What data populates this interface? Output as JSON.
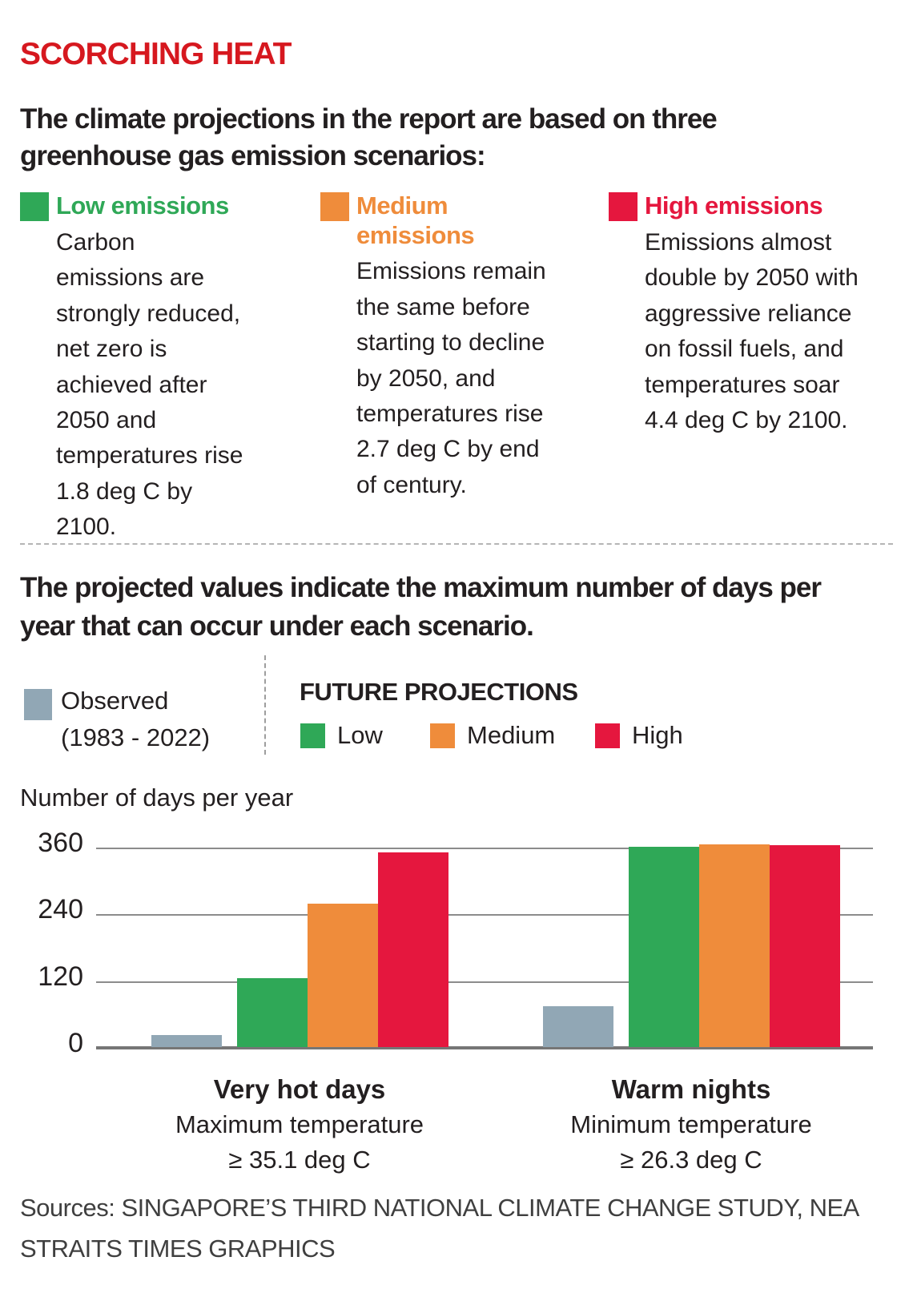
{
  "title": "SCORCHING HEAT",
  "title_color": "#d6181f",
  "intro": "The climate projections in the report are based on three greenhouse gas emission scenarios:",
  "scenarios": [
    {
      "label": "Low emissions",
      "color": "#2fa857",
      "desc": "Carbon emissions are strongly reduced, net zero is achieved after 2050 and temperatures rise 1.8 deg C by 2100."
    },
    {
      "label": "Medium emissions",
      "color": "#ef8c3b",
      "desc": "Emissions remain the same before starting to decline by 2050, and temperatures rise 2.7 deg C by end of century."
    },
    {
      "label": "High emissions",
      "color": "#e5173e",
      "desc": "Emissions almost double by 2050 with aggressive reliance on fossil fuels, and temperatures soar 4.4 deg C by 2100."
    }
  ],
  "note": "The projected values indicate the maximum number of days per year that can occur under each scenario.",
  "legend": {
    "observed_label": "Observed",
    "observed_period": "(1983 - 2022)",
    "observed_color": "#91a7b5",
    "future_title": "FUTURE PROJECTIONS",
    "items": [
      {
        "label": "Low",
        "color": "#2fa857"
      },
      {
        "label": "Medium",
        "color": "#ef8c3b"
      },
      {
        "label": "High",
        "color": "#e5173e"
      }
    ]
  },
  "chart_data": {
    "type": "bar",
    "axis_label": "Number of days per year",
    "ylabel": "Number of days per year",
    "yticks": [
      0,
      120,
      240,
      360
    ],
    "ylim": [
      0,
      372
    ],
    "grid": true,
    "legend_position": "top",
    "categories": [
      "Very hot days",
      "Warm nights"
    ],
    "category_subtitles": [
      [
        "Maximum temperature",
        "≥ 35.1 deg C"
      ],
      [
        "Minimum temperature",
        "≥ 26.3 deg C"
      ]
    ],
    "series": [
      {
        "name": "Observed (1983 - 2022)",
        "color": "#91a7b5",
        "values": [
          21,
          73
        ]
      },
      {
        "name": "Low",
        "color": "#2fa857",
        "values": [
          124,
          360
        ]
      },
      {
        "name": "Medium",
        "color": "#ef8c3b",
        "values": [
          258,
          364
        ]
      },
      {
        "name": "High",
        "color": "#e5173e",
        "values": [
          350,
          363
        ]
      }
    ]
  },
  "sources": [
    "Sources: SINGAPORE’S THIRD NATIONAL CLIMATE CHANGE STUDY, NEA",
    "STRAITS TIMES GRAPHICS"
  ]
}
